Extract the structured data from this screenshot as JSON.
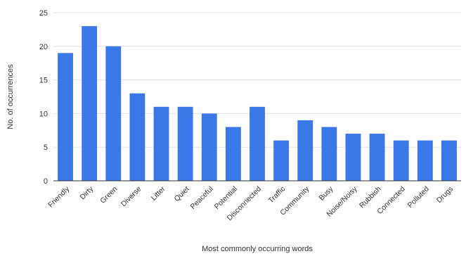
{
  "chart_data": {
    "type": "bar",
    "title": "",
    "xlabel": "Most commonly occurring words",
    "ylabel": "No. of occurrences",
    "categories": [
      "Friendly",
      "Dirty",
      "Green",
      "Diverse",
      "Litter",
      "Quiet",
      "Peaceful",
      "Potential",
      "Disconnected",
      "Traffic",
      "Community",
      "Busy",
      "Noise/Noisy",
      "Rubbish",
      "Connected",
      "Polluted",
      "Drugs"
    ],
    "values": [
      19,
      23,
      20,
      13,
      11,
      11,
      10,
      8,
      11,
      6,
      9,
      8,
      7,
      7,
      6,
      6,
      6
    ],
    "ylim": [
      0,
      25
    ],
    "yticks": [
      0,
      5,
      10,
      15,
      20,
      25
    ],
    "grid": true,
    "legend": "none",
    "colors": {
      "bar": "#3b78e7",
      "grid": "#e0e0e0",
      "axis": "#333333",
      "text": "#333333"
    }
  }
}
